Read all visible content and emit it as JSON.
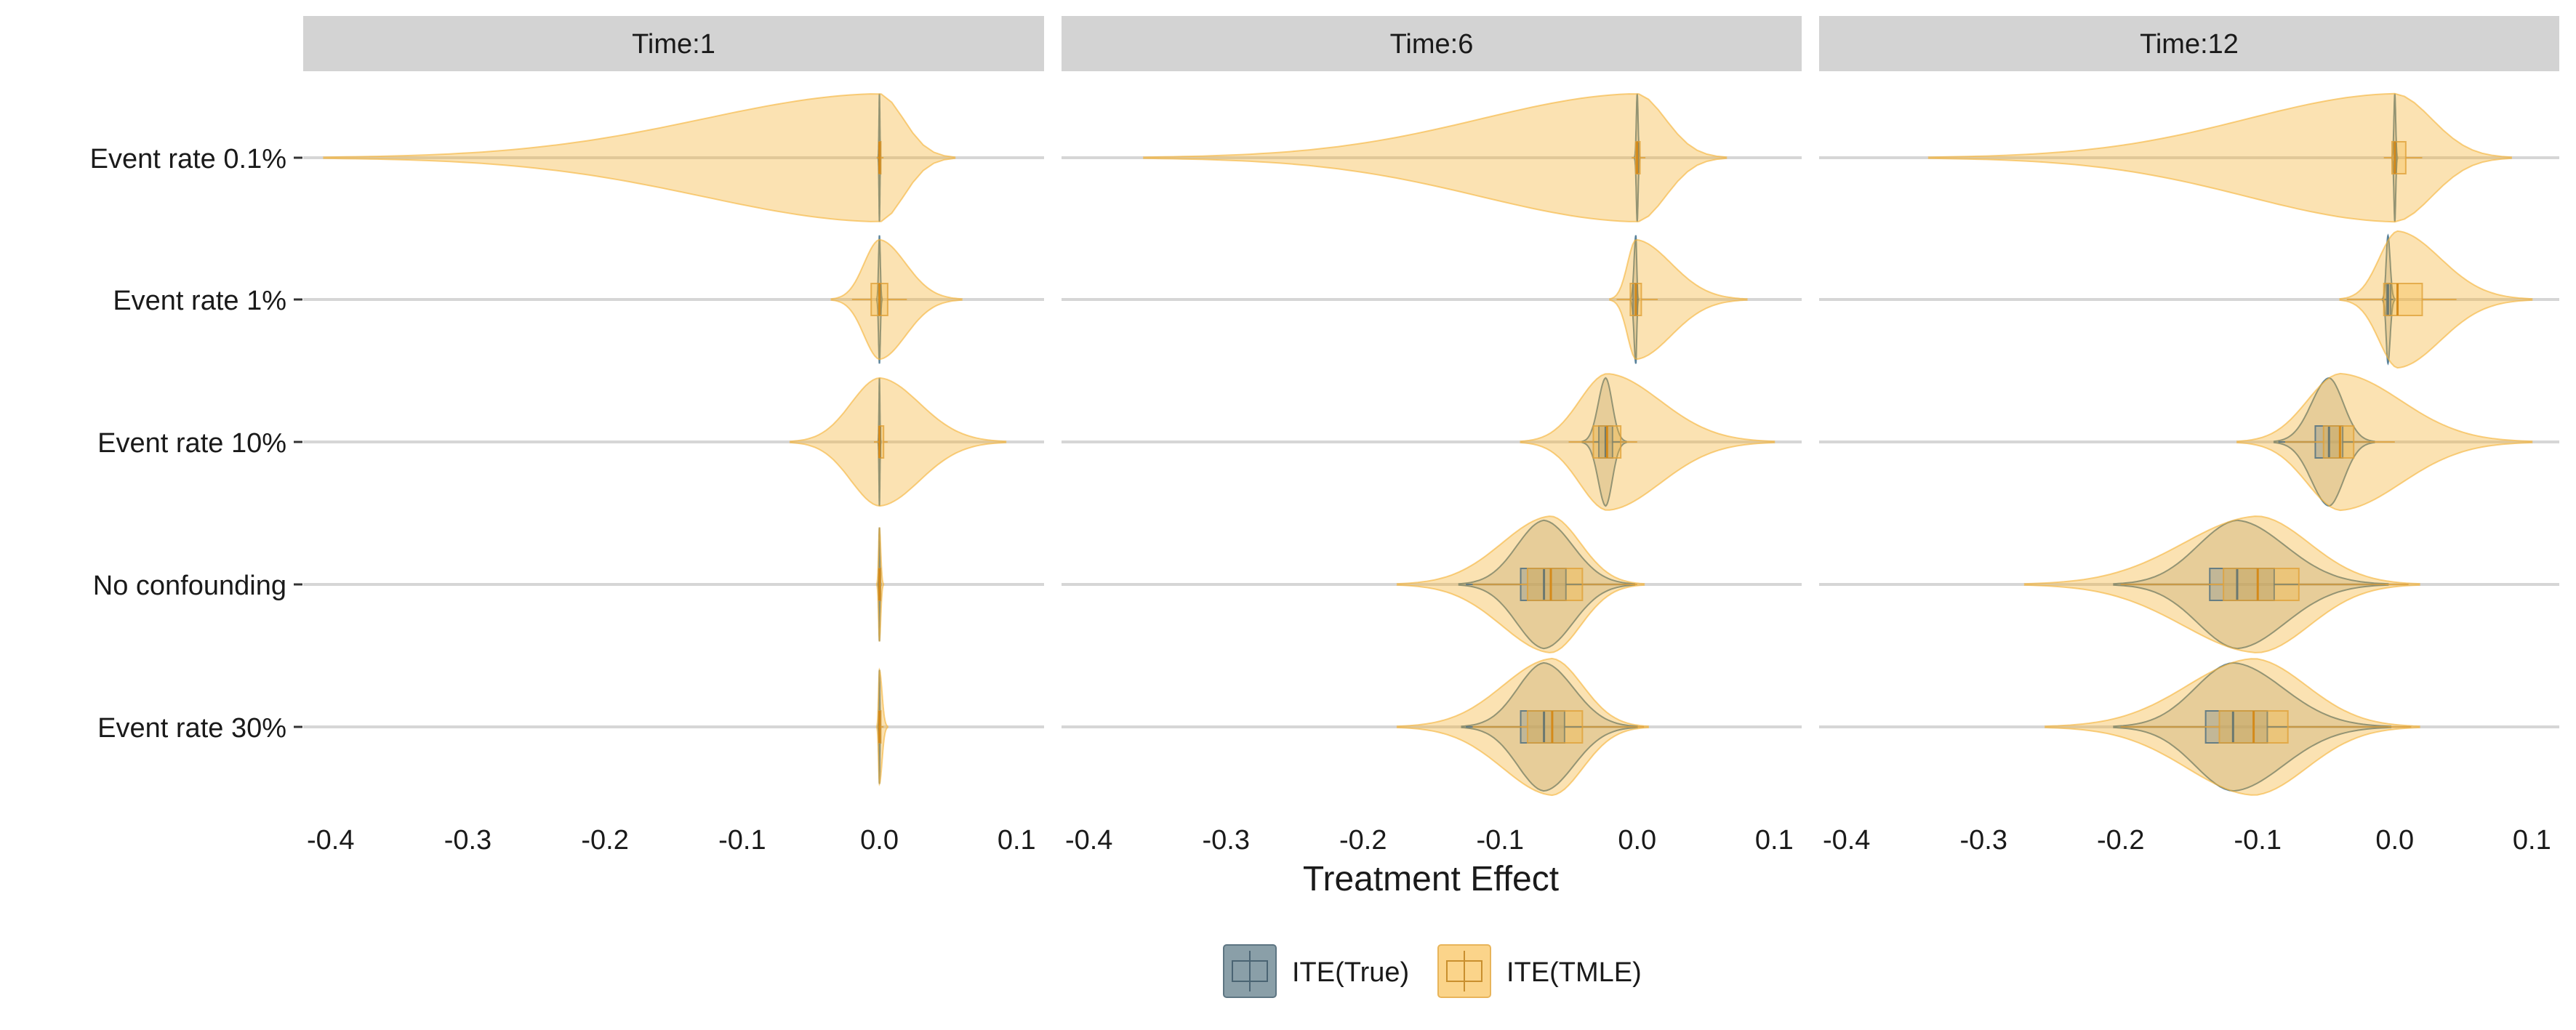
{
  "chart_data": {
    "type": "violin",
    "xlabel": "Treatment Effect",
    "xlim": [
      -0.42,
      0.12
    ],
    "x_ticks": [
      -0.4,
      -0.3,
      -0.2,
      -0.1,
      0.0,
      0.1
    ],
    "x_tick_labels": [
      "-0.4",
      "-0.3",
      "-0.2",
      "-0.1",
      "0.0",
      "0.1"
    ],
    "categories": [
      "Event rate 0.1%",
      "Event rate 1%",
      "Event rate 10%",
      "No confounding",
      "Event rate 30%"
    ],
    "panels": [
      {
        "title": "Time:1",
        "series": [
          {
            "name": "ITE(True)",
            "color": "#3e6e8c",
            "data": [
              {
                "category": "Event rate 0.1%",
                "min": 0.0,
                "q1": 0.0,
                "median": 0.0,
                "q3": 0.0,
                "max": 0.0,
                "range": [
                  -0.001,
                  0.001
                ],
                "half_height": 0.45
              },
              {
                "category": "Event rate 1%",
                "min": -0.001,
                "q1": 0.0,
                "median": 0.0,
                "q3": 0.0,
                "max": 0.001,
                "range": [
                  -0.002,
                  0.002
                ],
                "half_height": 0.45
              },
              {
                "category": "Event rate 10%",
                "min": 0.0,
                "q1": 0.0,
                "median": 0.0,
                "q3": 0.0,
                "max": 0.0,
                "range": [
                  -0.001,
                  0.001
                ],
                "half_height": 0.45
              },
              {
                "category": "No confounding",
                "min": 0.0,
                "q1": 0.0,
                "median": 0.0,
                "q3": 0.0,
                "max": 0.0,
                "range": [
                  -0.001,
                  0.001
                ],
                "half_height": 0.4
              },
              {
                "category": "Event rate 30%",
                "min": 0.0,
                "q1": 0.0,
                "median": 0.0,
                "q3": 0.0,
                "max": 0.0,
                "range": [
                  -0.001,
                  0.001
                ],
                "half_height": 0.4
              }
            ]
          },
          {
            "name": "ITE(TMLE)",
            "color": "#f5b335",
            "data": [
              {
                "category": "Event rate 0.1%",
                "min": -0.002,
                "q1": 0.0,
                "median": 0.0,
                "q3": 0.001,
                "max": 0.003,
                "range": [
                  -0.405,
                  0.055
                ],
                "half_height": 0.45
              },
              {
                "category": "Event rate 1%",
                "min": -0.02,
                "q1": -0.006,
                "median": 0.0,
                "q3": 0.006,
                "max": 0.02,
                "range": [
                  -0.035,
                  0.06
                ],
                "half_height": 0.42
              },
              {
                "category": "Event rate 10%",
                "min": -0.004,
                "q1": 0.0,
                "median": 0.0,
                "q3": 0.003,
                "max": 0.006,
                "range": [
                  -0.065,
                  0.092
                ],
                "half_height": 0.45
              },
              {
                "category": "No confounding",
                "min": 0.0,
                "q1": 0.0,
                "median": 0.0,
                "q3": 0.0,
                "max": 0.001,
                "range": [
                  -0.002,
                  0.003
                ],
                "half_height": 0.4
              },
              {
                "category": "Event rate 30%",
                "min": -0.001,
                "q1": 0.0,
                "median": 0.0,
                "q3": 0.001,
                "max": 0.003,
                "range": [
                  -0.002,
                  0.006
                ],
                "half_height": 0.4
              }
            ]
          }
        ]
      },
      {
        "title": "Time:6",
        "series": [
          {
            "name": "ITE(True)",
            "color": "#3e6e8c",
            "data": [
              {
                "category": "Event rate 0.1%",
                "min": -0.001,
                "q1": 0.0,
                "median": 0.0,
                "q3": 0.0,
                "max": 0.001,
                "range": [
                  -0.002,
                  0.002
                ],
                "half_height": 0.45
              },
              {
                "category": "Event rate 1%",
                "min": -0.004,
                "q1": -0.003,
                "median": -0.001,
                "q3": 0.0,
                "max": 0.001,
                "range": [
                  -0.005,
                  0.001
                ],
                "half_height": 0.45
              },
              {
                "category": "Event rate 10%",
                "min": -0.038,
                "q1": -0.028,
                "median": -0.023,
                "q3": -0.018,
                "max": -0.01,
                "range": [
                  -0.04,
                  -0.008
                ],
                "half_height": 0.45
              },
              {
                "category": "No confounding",
                "min": -0.125,
                "q1": -0.085,
                "median": -0.068,
                "q3": -0.052,
                "max": -0.005,
                "range": [
                  -0.13,
                  -0.002
                ],
                "half_height": 0.45
              },
              {
                "category": "Event rate 30%",
                "min": -0.125,
                "q1": -0.085,
                "median": -0.068,
                "q3": -0.053,
                "max": 0.0,
                "range": [
                  -0.128,
                  0.0
                ],
                "half_height": 0.45
              }
            ]
          },
          {
            "name": "ITE(TMLE)",
            "color": "#f5b335",
            "data": [
              {
                "category": "Event rate 0.1%",
                "min": -0.004,
                "q1": -0.001,
                "median": 0.0,
                "q3": 0.002,
                "max": 0.006,
                "range": [
                  -0.36,
                  0.065
                ],
                "half_height": 0.45
              },
              {
                "category": "Event rate 1%",
                "min": -0.015,
                "q1": -0.005,
                "median": -0.001,
                "q3": 0.003,
                "max": 0.015,
                "range": [
                  -0.02,
                  0.08
                ],
                "half_height": 0.42
              },
              {
                "category": "Event rate 10%",
                "min": -0.05,
                "q1": -0.032,
                "median": -0.022,
                "q3": -0.012,
                "max": 0.0,
                "range": [
                  -0.085,
                  0.1
                ],
                "half_height": 0.48
              },
              {
                "category": "No confounding",
                "min": -0.12,
                "q1": -0.08,
                "median": -0.063,
                "q3": -0.04,
                "max": 0.0,
                "range": [
                  -0.175,
                  0.005
                ],
                "half_height": 0.48
              },
              {
                "category": "Event rate 30%",
                "min": -0.12,
                "q1": -0.08,
                "median": -0.062,
                "q3": -0.04,
                "max": 0.005,
                "range": [
                  -0.175,
                  0.008
                ],
                "half_height": 0.48
              }
            ]
          }
        ]
      },
      {
        "title": "Time:12",
        "series": [
          {
            "name": "ITE(True)",
            "color": "#3e6e8c",
            "data": [
              {
                "category": "Event rate 0.1%",
                "min": -0.001,
                "q1": 0.0,
                "median": 0.0,
                "q3": 0.0,
                "max": 0.001,
                "range": [
                  -0.002,
                  0.002
                ],
                "half_height": 0.45
              },
              {
                "category": "Event rate 1%",
                "min": -0.008,
                "q1": -0.006,
                "median": -0.005,
                "q3": -0.003,
                "max": -0.001,
                "range": [
                  -0.009,
                  0.0
                ],
                "half_height": 0.45
              },
              {
                "category": "Event rate 10%",
                "min": -0.085,
                "q1": -0.058,
                "median": -0.048,
                "q3": -0.038,
                "max": -0.018,
                "range": [
                  -0.088,
                  -0.015
                ],
                "half_height": 0.45
              },
              {
                "category": "No confounding",
                "min": -0.2,
                "q1": -0.135,
                "median": -0.115,
                "q3": -0.088,
                "max": -0.007,
                "range": [
                  -0.205,
                  -0.005
                ],
                "half_height": 0.45
              },
              {
                "category": "Event rate 30%",
                "min": -0.2,
                "q1": -0.138,
                "median": -0.118,
                "q3": -0.093,
                "max": -0.005,
                "range": [
                  -0.205,
                  -0.003
                ],
                "half_height": 0.45
              }
            ]
          },
          {
            "name": "ITE(TMLE)",
            "color": "#f5b335",
            "data": [
              {
                "category": "Event rate 0.1%",
                "min": -0.008,
                "q1": -0.002,
                "median": 0.0,
                "q3": 0.008,
                "max": 0.02,
                "range": [
                  -0.34,
                  0.085
                ],
                "half_height": 0.45
              },
              {
                "category": "Event rate 1%",
                "min": -0.035,
                "q1": -0.008,
                "median": 0.002,
                "q3": 0.02,
                "max": 0.045,
                "range": [
                  -0.04,
                  0.1
                ],
                "half_height": 0.48
              },
              {
                "category": "Event rate 10%",
                "min": -0.08,
                "q1": -0.052,
                "median": -0.04,
                "q3": -0.03,
                "max": 0.0,
                "range": [
                  -0.115,
                  0.1
                ],
                "half_height": 0.48
              },
              {
                "category": "No confounding",
                "min": -0.2,
                "q1": -0.125,
                "median": -0.1,
                "q3": -0.07,
                "max": 0.01,
                "range": [
                  -0.27,
                  0.018
                ],
                "half_height": 0.48
              },
              {
                "category": "Event rate 30%",
                "min": -0.2,
                "q1": -0.128,
                "median": -0.103,
                "q3": -0.078,
                "max": 0.012,
                "range": [
                  -0.255,
                  0.018
                ],
                "half_height": 0.48
              }
            ]
          }
        ]
      }
    ],
    "legend": {
      "position": "bottom",
      "entries": [
        {
          "label": "ITE(True)",
          "color": "#3e6e8c"
        },
        {
          "label": "ITE(TMLE)",
          "color": "#f5b335"
        }
      ]
    },
    "strip_color": "#d3d3d3",
    "gridline_color": "#d6d6d6",
    "grid": "horizontal"
  }
}
